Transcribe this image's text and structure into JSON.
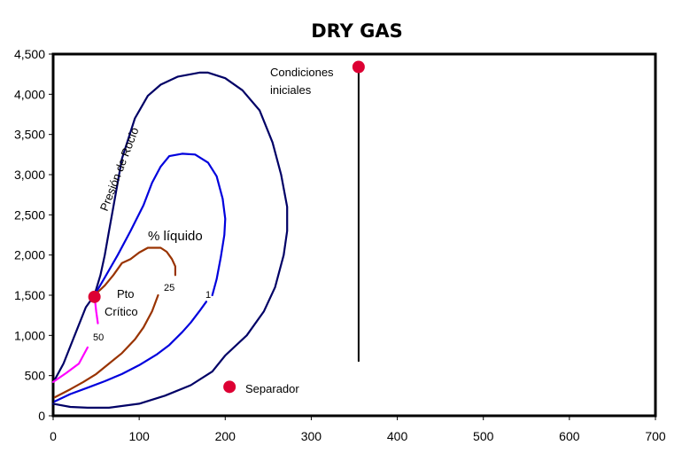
{
  "chart_data": {
    "type": "line",
    "title": "DRY GAS",
    "xlabel": "",
    "ylabel": "",
    "xlim": [
      0,
      700
    ],
    "ylim": [
      0,
      4500
    ],
    "x_ticks": [
      0,
      100,
      200,
      300,
      400,
      500,
      600,
      700
    ],
    "y_ticks": [
      0,
      500,
      1000,
      1500,
      2000,
      2500,
      3000,
      3500,
      4000,
      4500
    ],
    "x_tick_labels": [
      "0",
      "100",
      "200",
      "300",
      "400",
      "500",
      "600",
      "700"
    ],
    "y_tick_labels": [
      "0",
      "500",
      "1,000",
      "1,500",
      "2,000",
      "2,500",
      "3,000",
      "3,500",
      "4,000",
      "4,500"
    ],
    "grid": false,
    "series": [
      {
        "label": "",
        "color": "#000066",
        "points": [
          [
            2,
            450
          ],
          [
            12,
            650
          ],
          [
            25,
            1000
          ],
          [
            38,
            1350
          ],
          [
            48,
            1500
          ],
          [
            55,
            1750
          ],
          [
            60,
            2000
          ],
          [
            65,
            2300
          ],
          [
            70,
            2600
          ],
          [
            80,
            3200
          ],
          [
            95,
            3700
          ],
          [
            110,
            3980
          ],
          [
            125,
            4120
          ],
          [
            145,
            4220
          ],
          [
            170,
            4270
          ],
          [
            180,
            4270
          ],
          [
            200,
            4200
          ],
          [
            220,
            4050
          ],
          [
            240,
            3800
          ],
          [
            255,
            3400
          ],
          [
            265,
            3000
          ],
          [
            272,
            2600
          ],
          [
            272,
            2300
          ],
          [
            268,
            2000
          ],
          [
            258,
            1600
          ],
          [
            245,
            1300
          ],
          [
            225,
            1000
          ],
          [
            200,
            750
          ],
          [
            185,
            550
          ],
          [
            160,
            380
          ],
          [
            130,
            250
          ],
          [
            100,
            150
          ],
          [
            65,
            100
          ],
          [
            40,
            100
          ],
          [
            20,
            110
          ],
          [
            0,
            150
          ]
        ]
      },
      {
        "label": "1",
        "color": "#0000dd",
        "points": [
          [
            2,
            180
          ],
          [
            20,
            270
          ],
          [
            40,
            350
          ],
          [
            60,
            430
          ],
          [
            80,
            520
          ],
          [
            100,
            630
          ],
          [
            120,
            760
          ],
          [
            135,
            880
          ],
          [
            150,
            1040
          ],
          [
            160,
            1160
          ],
          [
            170,
            1300
          ],
          [
            178,
            1420
          ]
        ]
      },
      {
        "label": "1",
        "color": "#0000dd",
        "points": [
          [
            48,
            1500
          ],
          [
            60,
            1720
          ],
          [
            75,
            2000
          ],
          [
            90,
            2300
          ],
          [
            105,
            2620
          ],
          [
            115,
            2900
          ],
          [
            125,
            3100
          ],
          [
            135,
            3230
          ],
          [
            150,
            3260
          ],
          [
            165,
            3250
          ],
          [
            180,
            3150
          ],
          [
            190,
            2980
          ],
          [
            197,
            2700
          ],
          [
            200,
            2450
          ],
          [
            199,
            2250
          ],
          [
            195,
            1980
          ],
          [
            190,
            1700
          ],
          [
            185,
            1500
          ]
        ]
      },
      {
        "label": "25",
        "color": "#993300",
        "points": [
          [
            2,
            230
          ],
          [
            20,
            330
          ],
          [
            35,
            420
          ],
          [
            50,
            520
          ],
          [
            65,
            650
          ],
          [
            80,
            780
          ],
          [
            95,
            950
          ],
          [
            105,
            1100
          ],
          [
            115,
            1300
          ],
          [
            122,
            1500
          ]
        ]
      },
      {
        "label": "25",
        "color": "#993300",
        "points": [
          [
            48,
            1500
          ],
          [
            60,
            1620
          ],
          [
            70,
            1750
          ],
          [
            80,
            1900
          ],
          [
            90,
            1950
          ],
          [
            100,
            2030
          ],
          [
            110,
            2090
          ],
          [
            125,
            2090
          ],
          [
            132,
            2040
          ],
          [
            138,
            1950
          ],
          [
            142,
            1860
          ],
          [
            142,
            1750
          ]
        ]
      },
      {
        "label": "50",
        "color": "#ff00ff",
        "points": [
          [
            0,
            420
          ],
          [
            15,
            530
          ],
          [
            30,
            650
          ],
          [
            40,
            850
          ]
        ]
      },
      {
        "label": "50",
        "color": "#ff00ff",
        "points": [
          [
            48,
            1500
          ],
          [
            50,
            1300
          ],
          [
            52,
            1150
          ]
        ]
      },
      {
        "label": "",
        "color": "#000000",
        "points": [
          [
            355,
            4320
          ],
          [
            355,
            680
          ]
        ]
      }
    ],
    "markers": [
      {
        "name": "Pto Crítico",
        "x": 48,
        "y": 1480,
        "color": "#dd0033"
      },
      {
        "name": "Condiciones iniciales",
        "x": 355,
        "y": 4340,
        "color": "#dd0033"
      },
      {
        "name": "Separador",
        "x": 205,
        "y": 360,
        "color": "#dd0033"
      }
    ],
    "annotations": {
      "dew_pressure": "Presión de Rocío",
      "liquid_percent": "% líquido",
      "critical_line1": "Pto",
      "critical_line2": "Crítico",
      "initial_line1": "Condiciones",
      "initial_line2": "iniciales",
      "separator": "Separador",
      "label_1": "1",
      "label_25": "25",
      "label_50": "50"
    }
  }
}
